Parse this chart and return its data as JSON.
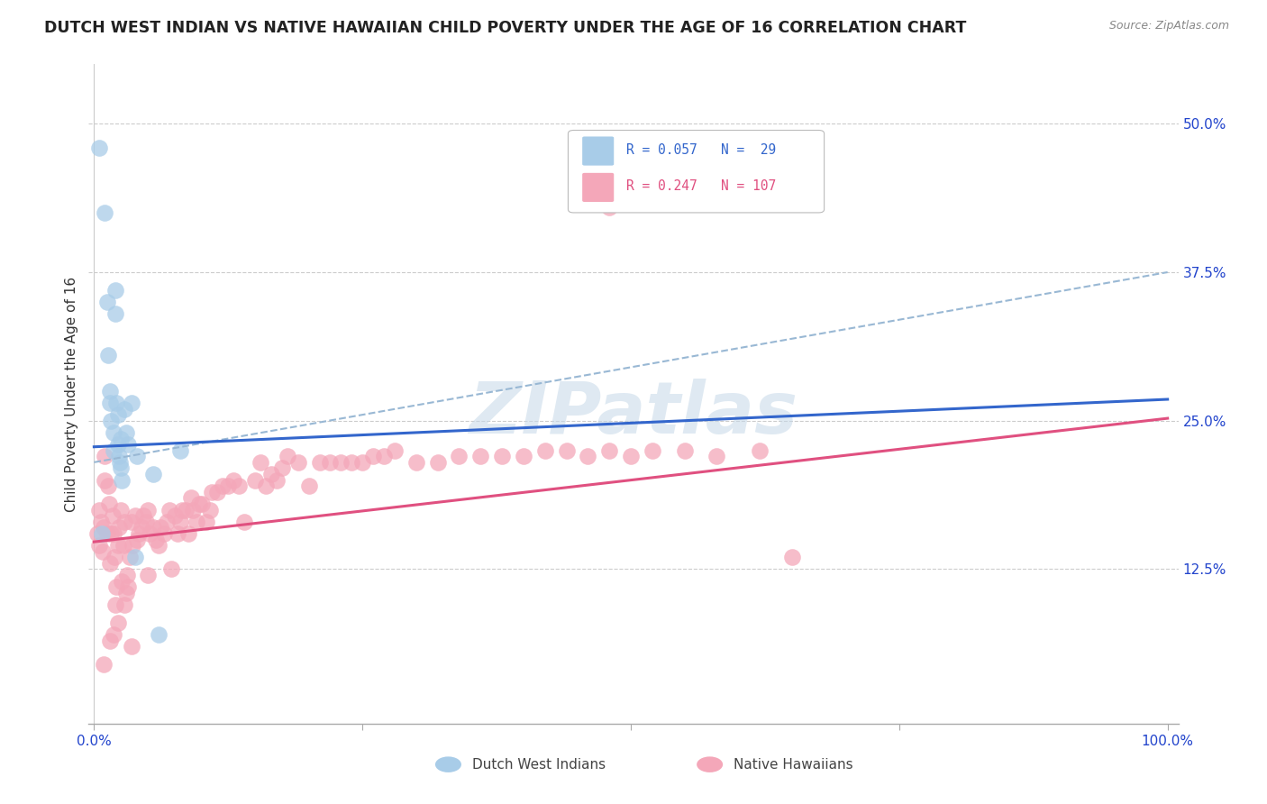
{
  "title": "DUTCH WEST INDIAN VS NATIVE HAWAIIAN CHILD POVERTY UNDER THE AGE OF 16 CORRELATION CHART",
  "source": "Source: ZipAtlas.com",
  "ylabel": "Child Poverty Under the Age of 16",
  "ytick_vals": [
    0.125,
    0.25,
    0.375,
    0.5
  ],
  "ytick_labels": [
    "12.5%",
    "25.0%",
    "37.5%",
    "50.0%"
  ],
  "xlim": [
    0.0,
    1.0
  ],
  "ylim": [
    0.0,
    0.55
  ],
  "blue_scatter_color": "#a8cce8",
  "pink_scatter_color": "#f4a7b9",
  "trend_blue_color": "#3366cc",
  "trend_pink_color": "#e05080",
  "trend_dashed_color": "#99b8d4",
  "watermark_color": "#c5d8e8",
  "legend_r1": "R = 0.057",
  "legend_n1": "N =  29",
  "legend_r2": "R = 0.247",
  "legend_n2": "N = 107",
  "blue_line_x0": 0.0,
  "blue_line_y0": 0.228,
  "blue_line_x1": 1.0,
  "blue_line_y1": 0.268,
  "pink_line_x0": 0.0,
  "pink_line_y0": 0.148,
  "pink_line_x1": 1.0,
  "pink_line_y1": 0.252,
  "dashed_line_x0": 0.0,
  "dashed_line_y0": 0.215,
  "dashed_line_x1": 1.0,
  "dashed_line_y1": 0.375,
  "dutch_x": [
    0.005,
    0.007,
    0.01,
    0.012,
    0.013,
    0.015,
    0.015,
    0.016,
    0.018,
    0.018,
    0.02,
    0.02,
    0.021,
    0.022,
    0.022,
    0.023,
    0.024,
    0.025,
    0.025,
    0.026,
    0.028,
    0.03,
    0.032,
    0.035,
    0.038,
    0.04,
    0.055,
    0.06,
    0.08
  ],
  "dutch_y": [
    0.48,
    0.155,
    0.425,
    0.35,
    0.305,
    0.275,
    0.265,
    0.25,
    0.24,
    0.225,
    0.36,
    0.34,
    0.265,
    0.255,
    0.23,
    0.22,
    0.215,
    0.21,
    0.235,
    0.2,
    0.26,
    0.24,
    0.23,
    0.265,
    0.135,
    0.22,
    0.205,
    0.07,
    0.225
  ],
  "hawaiian_x": [
    0.003,
    0.005,
    0.005,
    0.006,
    0.008,
    0.009,
    0.01,
    0.01,
    0.012,
    0.013,
    0.014,
    0.015,
    0.016,
    0.017,
    0.018,
    0.019,
    0.02,
    0.021,
    0.022,
    0.023,
    0.025,
    0.026,
    0.027,
    0.028,
    0.03,
    0.031,
    0.032,
    0.033,
    0.035,
    0.036,
    0.038,
    0.04,
    0.042,
    0.044,
    0.046,
    0.048,
    0.05,
    0.052,
    0.055,
    0.058,
    0.06,
    0.062,
    0.065,
    0.068,
    0.07,
    0.072,
    0.075,
    0.078,
    0.08,
    0.082,
    0.085,
    0.088,
    0.09,
    0.092,
    0.095,
    0.098,
    0.1,
    0.105,
    0.108,
    0.11,
    0.115,
    0.12,
    0.125,
    0.13,
    0.135,
    0.14,
    0.15,
    0.155,
    0.16,
    0.165,
    0.17,
    0.175,
    0.18,
    0.19,
    0.2,
    0.21,
    0.22,
    0.23,
    0.24,
    0.25,
    0.26,
    0.27,
    0.28,
    0.3,
    0.32,
    0.34,
    0.36,
    0.38,
    0.4,
    0.42,
    0.44,
    0.46,
    0.48,
    0.5,
    0.52,
    0.55,
    0.58,
    0.62,
    0.65,
    0.48,
    0.009,
    0.015,
    0.022,
    0.028,
    0.035,
    0.018,
    0.05
  ],
  "hawaiian_y": [
    0.155,
    0.145,
    0.175,
    0.165,
    0.14,
    0.16,
    0.2,
    0.22,
    0.155,
    0.195,
    0.18,
    0.13,
    0.155,
    0.17,
    0.155,
    0.135,
    0.095,
    0.11,
    0.145,
    0.16,
    0.175,
    0.115,
    0.145,
    0.165,
    0.105,
    0.12,
    0.11,
    0.135,
    0.165,
    0.145,
    0.17,
    0.15,
    0.155,
    0.16,
    0.17,
    0.165,
    0.175,
    0.155,
    0.16,
    0.15,
    0.145,
    0.16,
    0.155,
    0.165,
    0.175,
    0.125,
    0.17,
    0.155,
    0.165,
    0.175,
    0.175,
    0.155,
    0.185,
    0.175,
    0.165,
    0.18,
    0.18,
    0.165,
    0.175,
    0.19,
    0.19,
    0.195,
    0.195,
    0.2,
    0.195,
    0.165,
    0.2,
    0.215,
    0.195,
    0.205,
    0.2,
    0.21,
    0.22,
    0.215,
    0.195,
    0.215,
    0.215,
    0.215,
    0.215,
    0.215,
    0.22,
    0.22,
    0.225,
    0.215,
    0.215,
    0.22,
    0.22,
    0.22,
    0.22,
    0.225,
    0.225,
    0.22,
    0.225,
    0.22,
    0.225,
    0.225,
    0.22,
    0.225,
    0.135,
    0.43,
    0.045,
    0.065,
    0.08,
    0.095,
    0.06,
    0.07,
    0.12
  ]
}
